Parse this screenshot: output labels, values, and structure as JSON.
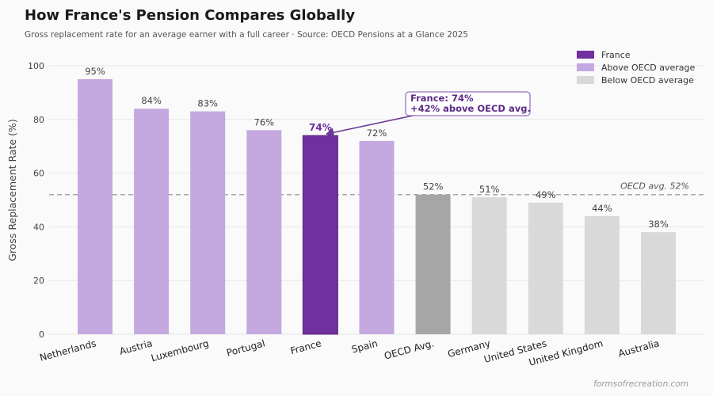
{
  "chart_data": {
    "type": "bar",
    "title": "How France's Pension Compares Globally",
    "subtitle": "Gross replacement rate for an average earner with a full career  ·  Source: OECD Pensions at a Glance 2025",
    "ylabel": "Gross Replacement Rate (%)",
    "xlabel": "",
    "ylim": [
      0,
      100
    ],
    "yticks": [
      0,
      20,
      40,
      60,
      80,
      100
    ],
    "grid": true,
    "legend_position": "top-right",
    "categories": [
      "Netherlands",
      "Austria",
      "Luxembourg",
      "Portugal",
      "France",
      "Spain",
      "OECD Avg.",
      "Germany",
      "United States",
      "United Kingdom",
      "Australia"
    ],
    "values": [
      95,
      84,
      83,
      76,
      74,
      72,
      52,
      51,
      49,
      44,
      38
    ],
    "data_labels": [
      "95%",
      "84%",
      "83%",
      "76%",
      "74%",
      "72%",
      "52%",
      "51%",
      "49%",
      "44%",
      "38%"
    ],
    "groups": [
      "above",
      "above",
      "above",
      "above",
      "france",
      "above",
      "oecd",
      "below",
      "below",
      "below",
      "below"
    ],
    "legend": [
      {
        "label": "France",
        "color": "#7030a0"
      },
      {
        "label": "Above OECD average",
        "color": "#c4a8e0"
      },
      {
        "label": "Below OECD average",
        "color": "#d9d9d9"
      }
    ],
    "colors": {
      "france": "#7030a0",
      "above": "#c4a8e0",
      "below": "#d9d9d9",
      "oecd": "#a6a6a6"
    },
    "reference_line": {
      "value": 52,
      "label": "OECD avg. 52%"
    },
    "annotation": {
      "target": "France",
      "lines": [
        "France: 74%",
        "+42% above OECD avg."
      ]
    }
  },
  "watermark": "formsofrecreation.com"
}
